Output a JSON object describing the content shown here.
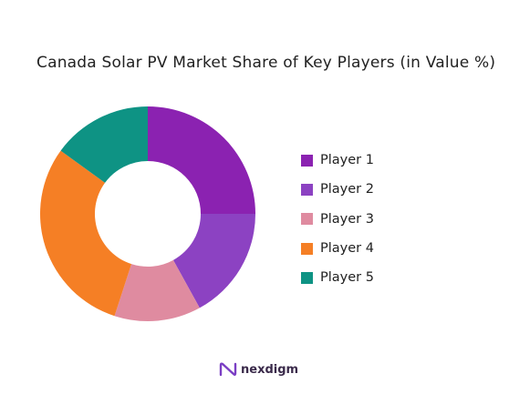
{
  "title": "Canada Solar PV Market Share of Key Players (in Value %)",
  "brand": {
    "name": "nexdigm",
    "logo_icon": "nexdigm-n-logo-icon"
  },
  "chart_data": {
    "type": "pie",
    "variant": "donut",
    "title": "Canada Solar PV Market Share of Key Players (in Value %)",
    "legend_position": "right",
    "categories": [
      "Player 1",
      "Player 2",
      "Player 3",
      "Player 4",
      "Player 5"
    ],
    "values": [
      25,
      17,
      13,
      30,
      15
    ],
    "colors": [
      "#8B22B1",
      "#8C42C2",
      "#DF8BA0",
      "#F57F25",
      "#0E9384"
    ],
    "start_angle_deg": 0,
    "direction": "clockwise"
  }
}
